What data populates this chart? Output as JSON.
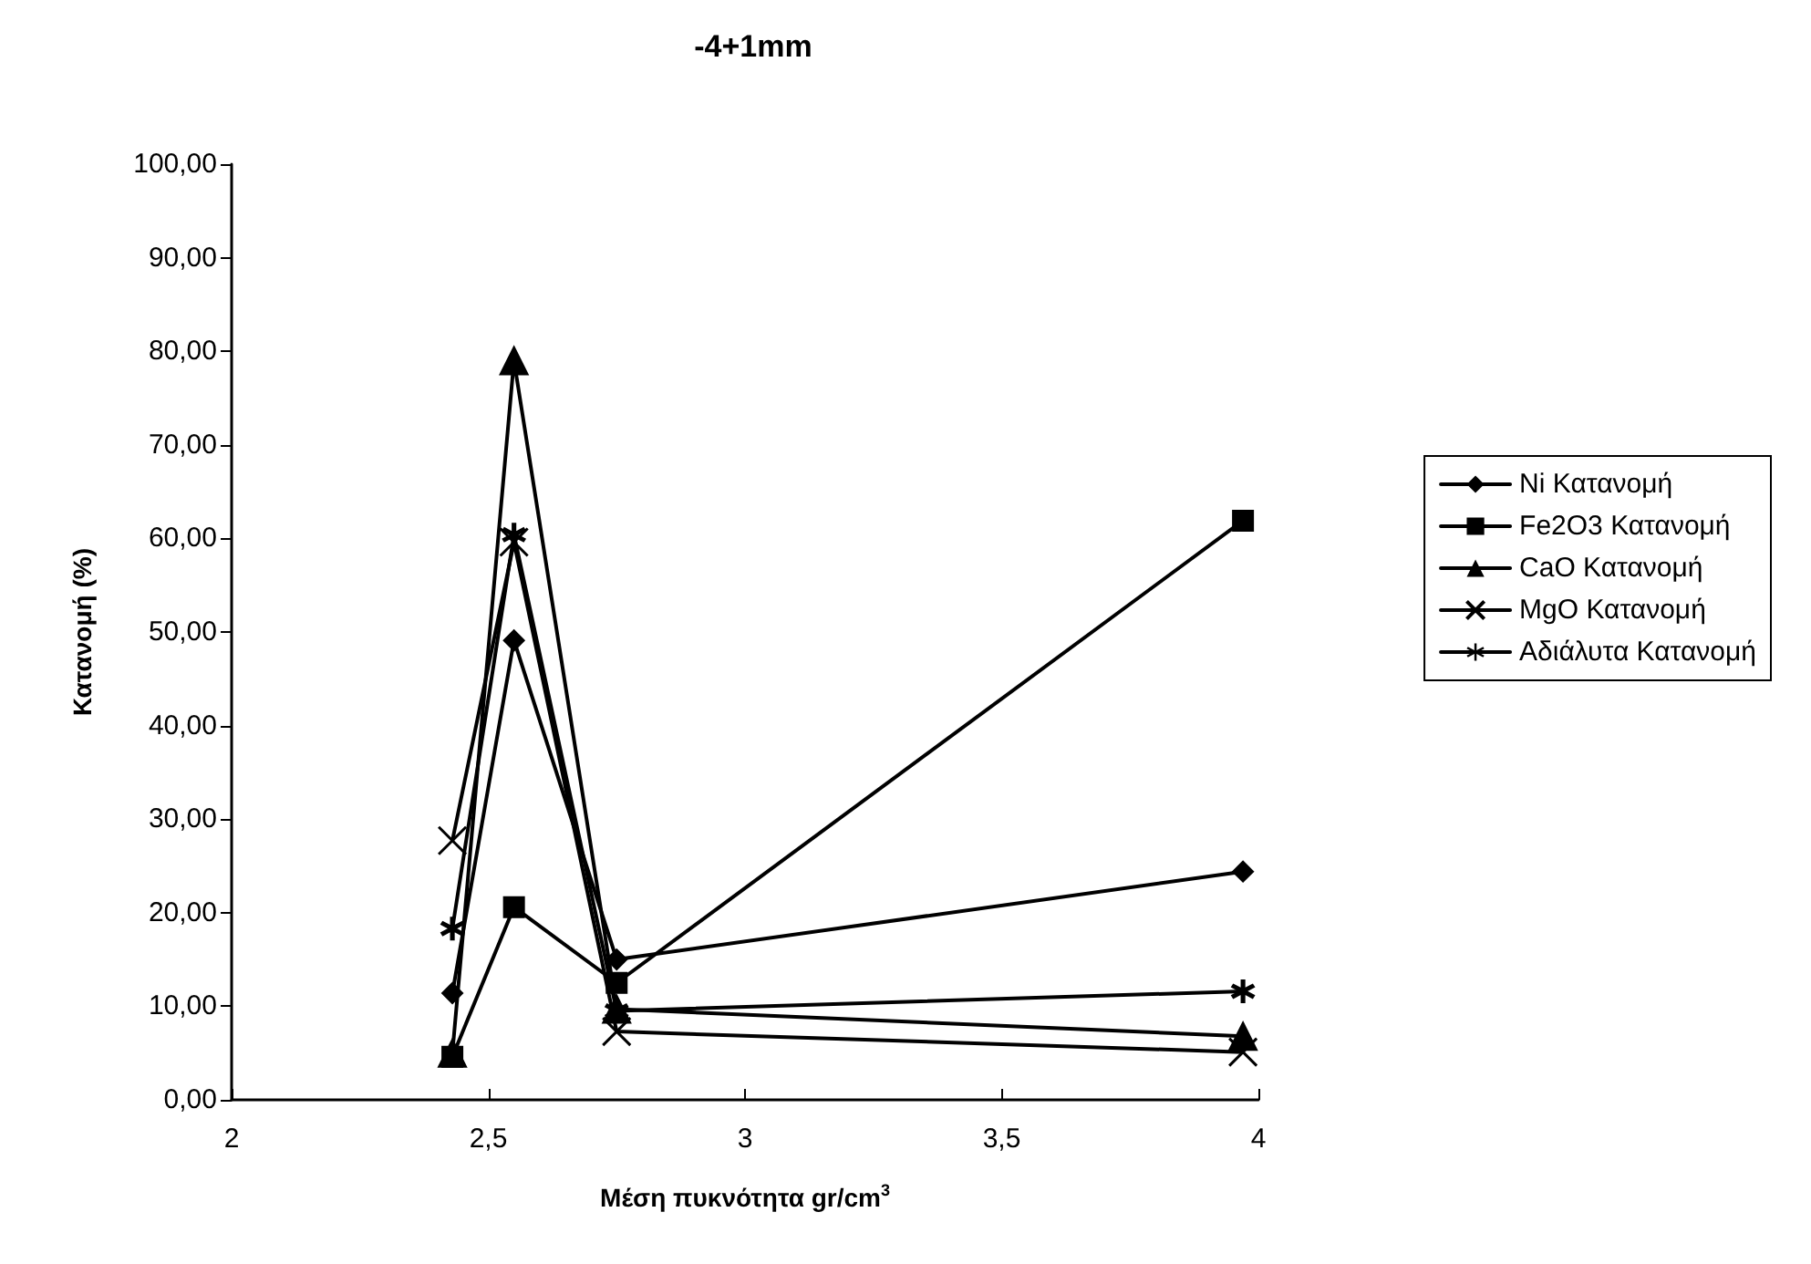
{
  "chart_data": {
    "type": "line",
    "title": "-4+1mm",
    "xlabel": "Μέση πυκνότητα gr/cm$^{3}$",
    "ylabel": "Κατανομή (%)",
    "xlim": [
      2,
      4
    ],
    "xticks": [
      2,
      {
        "value": 2.5,
        "label": "2,5"
      },
      3,
      {
        "value": 3.5,
        "label": "3,5"
      },
      4
    ],
    "ylim": [
      0,
      100
    ],
    "yticks": [
      {
        "value": 0,
        "label": "0,00"
      },
      {
        "value": 10,
        "label": "10,00"
      },
      {
        "value": 20,
        "label": "20,00"
      },
      {
        "value": 30,
        "label": "30,00"
      },
      {
        "value": 40,
        "label": "40,00"
      },
      {
        "value": 50,
        "label": "50,00"
      },
      {
        "value": 60,
        "label": "60,00"
      },
      {
        "value": 70,
        "label": "70,00"
      },
      {
        "value": 80,
        "label": "80,00"
      },
      {
        "value": 90,
        "label": "90,00"
      },
      {
        "value": 100,
        "label": "100,00"
      }
    ],
    "x": [
      2.43,
      2.55,
      2.75,
      3.97
    ],
    "series": [
      {
        "name": "Ni Κατανομή",
        "color": "#000000",
        "marker": "diamond",
        "values": [
          11.4,
          49.1,
          15.0,
          24.4
        ]
      },
      {
        "name": "Fe2O3 Κατανομή",
        "color": "#000000",
        "marker": "square",
        "values": [
          4.6,
          20.6,
          12.5,
          61.9
        ]
      },
      {
        "name": "CaO Κατανομή",
        "color": "#000000",
        "marker": "triangle",
        "values": [
          5.0,
          79.0,
          9.7,
          6.8
        ]
      },
      {
        "name": "MgO Κατανομή",
        "color": "#000000",
        "marker": "cross",
        "values": [
          27.7,
          59.6,
          7.3,
          5.1
        ]
      },
      {
        "name": "Αδιάλυτα Κατανομή",
        "color": "#000000",
        "marker": "star",
        "values": [
          18.3,
          60.4,
          9.5,
          11.6
        ]
      }
    ],
    "grid": false,
    "legend": "right",
    "line_style": "solid"
  }
}
